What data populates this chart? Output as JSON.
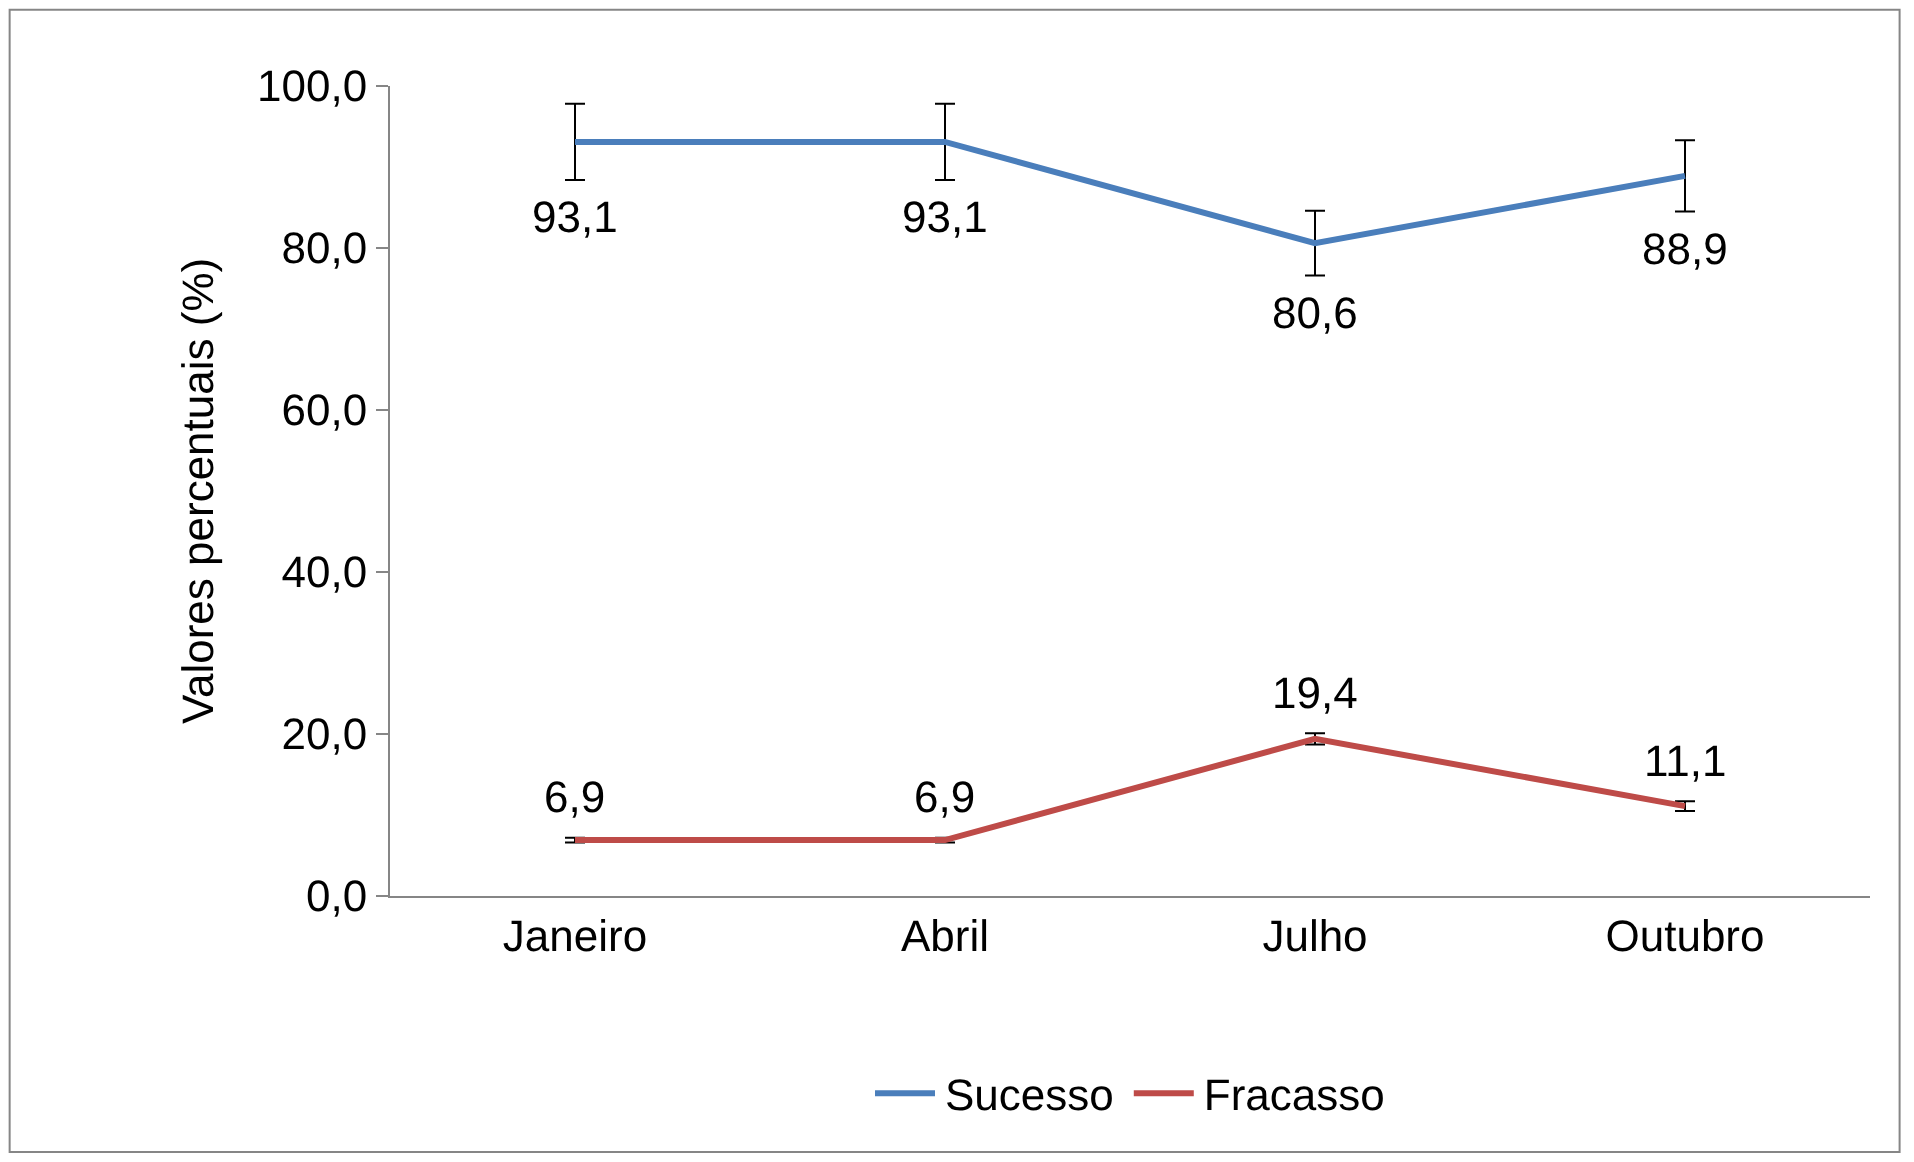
{
  "chart_data": {
    "type": "line",
    "ylabel": "Valores percentuais (%)",
    "categories": [
      "Janeiro",
      "Abril",
      "Julho",
      "Outubro"
    ],
    "series": [
      {
        "name": "Sucesso",
        "color": "#4a7ebb",
        "values": [
          93.1,
          93.1,
          80.6,
          88.9
        ],
        "errors": [
          4.7,
          4.7,
          4.0,
          4.4
        ],
        "value_labels": [
          "93,1",
          "93,1",
          "80,6",
          "88,9"
        ]
      },
      {
        "name": "Fracasso",
        "color": "#be4b48",
        "values": [
          6.9,
          6.9,
          19.4,
          11.1
        ],
        "errors": [
          0.3,
          0.3,
          0.7,
          0.6
        ],
        "value_labels": [
          "6,9",
          "6,9",
          "19,4",
          "11,1"
        ]
      }
    ],
    "ylim": [
      0,
      100
    ],
    "yticks": [
      {
        "value": 0,
        "label": "0,0"
      },
      {
        "value": 20,
        "label": "20,0"
      },
      {
        "value": 40,
        "label": "40,0"
      },
      {
        "value": 60,
        "label": "60,0"
      },
      {
        "value": 80,
        "label": "80,0"
      },
      {
        "value": 100,
        "label": "100,0"
      }
    ],
    "legend": "bottom",
    "marker": "none",
    "line_style": "solid"
  }
}
